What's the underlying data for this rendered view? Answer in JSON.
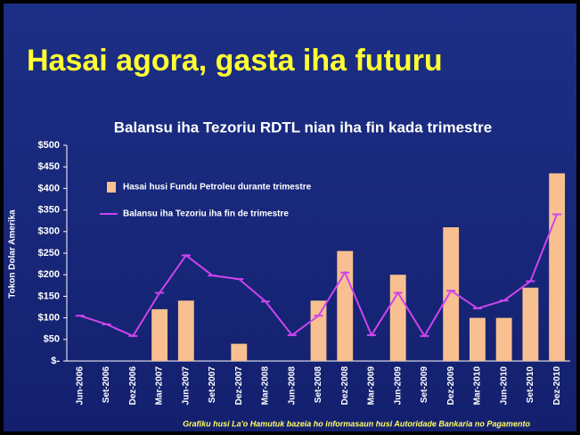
{
  "slide_title": "Hasai agora, gasta iha futuru",
  "chart_data": {
    "type": "combo",
    "title": "Balansu iha Tezoriu RDTL nian iha fin kada trimestre",
    "y_label": "Tokon Dolar Amerika",
    "source": "Grafiku husi La'o Hamutuk bazeia ho informasaun husi Autoridade Bankaria no Pagamento",
    "categories": [
      "Jun-2006",
      "Set-2006",
      "Dez-2006",
      "Mar-2007",
      "Jun-2007",
      "Set-2007",
      "Dez-2007",
      "Mar-2008",
      "Jun-2008",
      "Set-2008",
      "Dez-2008",
      "Mar-2009",
      "Jun-2009",
      "Set-2009",
      "Dez-2009",
      "Mar-2010",
      "Jun-2010",
      "Set-2010",
      "Dez-2010"
    ],
    "series": [
      {
        "name": "Hasai husi Fundu Petroleu durante trimestre",
        "type": "bar",
        "color": "#f8c090",
        "values": [
          null,
          null,
          null,
          120,
          140,
          null,
          40,
          null,
          null,
          140,
          255,
          null,
          200,
          null,
          310,
          100,
          100,
          170,
          435
        ]
      },
      {
        "name": "Balansu iha Tezoriu iha fin de trimestre",
        "type": "line",
        "color": "#cc44ee",
        "values": [
          105,
          85,
          58,
          158,
          245,
          198,
          190,
          138,
          60,
          105,
          205,
          60,
          158,
          58,
          163,
          122,
          140,
          185,
          340
        ]
      }
    ],
    "ylim": [
      0,
      500
    ],
    "yticks": [
      {
        "value": 0,
        "label": "$-"
      },
      {
        "value": 50,
        "label": "$50"
      },
      {
        "value": 100,
        "label": "$100"
      },
      {
        "value": 150,
        "label": "$150"
      },
      {
        "value": 200,
        "label": "$200"
      },
      {
        "value": 250,
        "label": "$250"
      },
      {
        "value": 300,
        "label": "$300"
      },
      {
        "value": 350,
        "label": "$350"
      },
      {
        "value": 400,
        "label": "$400"
      },
      {
        "value": 450,
        "label": "$450"
      },
      {
        "value": 500,
        "label": "$500"
      }
    ],
    "legend": "upper-left"
  }
}
